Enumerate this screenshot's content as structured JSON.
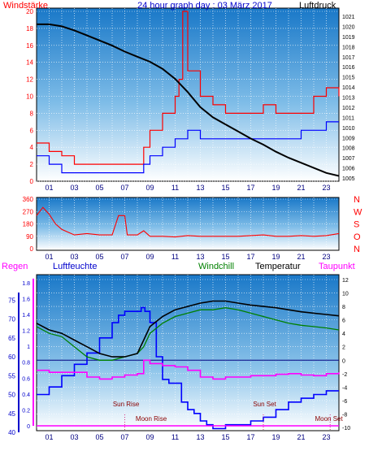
{
  "header": {
    "left": "Windstärke",
    "center": "24 hour graph day : 03 März 2017",
    "right": "Luftdruck"
  },
  "hours": [
    "01",
    "03",
    "05",
    "07",
    "09",
    "11",
    "13",
    "15",
    "17",
    "19",
    "21",
    "23"
  ],
  "panel1": {
    "left_ticks": [
      "0",
      "2",
      "4",
      "6",
      "8",
      "10",
      "12",
      "14",
      "16",
      "18",
      "20"
    ],
    "right_ticks": [
      "1005",
      "1006",
      "1007",
      "1008",
      "1009",
      "1010",
      "1011",
      "1012",
      "1013",
      "1014",
      "1015",
      "1016",
      "1017",
      "1018",
      "1019",
      "1020",
      "1021"
    ]
  },
  "panel2": {
    "left_ticks": [
      "0",
      "90",
      "180",
      "270",
      "360"
    ],
    "compass": [
      "N",
      "W",
      "S",
      "O",
      "N"
    ]
  },
  "panel3": {
    "labels": {
      "regen": "Regen",
      "luftfeuchte": "Luftfeuchte",
      "windchill": "Windchill",
      "temperatur": "Temperatur",
      "taupunkt": "Taupunkt"
    },
    "humidity_ticks": [
      "40",
      "45",
      "50",
      "55",
      "60",
      "65",
      "70",
      "75"
    ],
    "rain_ticks": [
      "0",
      "0.2",
      "0.4",
      "0.6",
      "0.8",
      "1",
      "1.2",
      "1.4",
      "1.6",
      "1.8"
    ],
    "temp_ticks": [
      "-10",
      "-8",
      "-6",
      "-4",
      "-2",
      "0",
      "2",
      "4",
      "6",
      "8",
      "10",
      "12"
    ],
    "annotations": {
      "sun_rise": "Sun Rise",
      "moon_rise": "Moon Rise",
      "sun_set": "Sun Set",
      "moon_set": "Moon Set"
    }
  },
  "colors": {
    "wind_gust": "#ff0000",
    "wind_avg": "#0000ff",
    "pressure": "#000000",
    "direction": "#ff0000",
    "humidity": "#0000ff",
    "temperature": "#000000",
    "windchill": "#008000",
    "dewpoint": "#ff00ff",
    "rain": "#ff00ff",
    "annotation": "#8b0000"
  },
  "chart_data": [
    {
      "type": "line",
      "ylim_left": [
        0,
        20
      ],
      "ylim_right": [
        1005,
        1021
      ],
      "xlim": [
        0,
        24
      ],
      "series": [
        {
          "name": "",
          "axis": "left",
          "x": [
            0,
            1,
            2,
            3,
            4,
            5,
            6,
            7,
            8,
            8.5,
            9,
            10,
            11,
            11.3,
            11.6,
            12,
            13,
            14,
            15,
            16,
            17,
            18,
            19,
            20,
            21,
            22,
            23,
            24
          ],
          "values": [
            4.5,
            3.5,
            3,
            2,
            2,
            2,
            2,
            2,
            2,
            4,
            6,
            8,
            10,
            12,
            20,
            13,
            10,
            9,
            8,
            8,
            8,
            9,
            8,
            8,
            8,
            10,
            11,
            10
          ]
        },
        {
          "name": "",
          "axis": "left",
          "x": [
            0,
            1,
            2,
            3,
            4,
            5,
            6,
            7,
            8,
            8.5,
            9,
            10,
            11,
            12,
            13,
            14,
            15,
            16,
            17,
            18,
            19,
            20,
            21,
            22,
            23,
            24
          ],
          "values": [
            3,
            2,
            1,
            1,
            1,
            1,
            1,
            1,
            1,
            2,
            3,
            4,
            5,
            6,
            5,
            5,
            5,
            5,
            5,
            5,
            5,
            5,
            6,
            6,
            7,
            7
          ]
        },
        {
          "name": "",
          "axis": "right",
          "x": [
            0,
            1,
            2,
            3,
            4,
            5,
            6,
            7,
            8,
            9,
            10,
            11,
            12,
            13,
            14,
            15,
            16,
            17,
            18,
            19,
            20,
            21,
            22,
            23,
            24
          ],
          "values": [
            1020.2,
            1020.2,
            1020.0,
            1019.6,
            1019.1,
            1018.6,
            1018.1,
            1017.5,
            1017.0,
            1016.5,
            1015.8,
            1014.8,
            1013.5,
            1012.0,
            1011.0,
            1010.3,
            1009.6,
            1008.9,
            1008.3,
            1007.6,
            1007.0,
            1006.5,
            1006.0,
            1005.5,
            1005.2
          ]
        }
      ]
    },
    {
      "type": "line",
      "ylim": [
        0,
        360
      ],
      "xlim": [
        0,
        24
      ],
      "series": [
        {
          "name": "",
          "x": [
            0,
            0.5,
            1,
            1.5,
            2,
            2.5,
            3,
            4,
            5,
            6,
            6.5,
            7,
            7.2,
            8,
            8.5,
            9,
            10,
            11,
            12,
            13,
            14,
            15,
            16,
            17,
            18,
            19,
            20,
            21,
            22,
            23,
            24
          ],
          "values": [
            240,
            300,
            250,
            180,
            140,
            120,
            100,
            110,
            100,
            100,
            240,
            240,
            100,
            100,
            130,
            90,
            90,
            85,
            95,
            90,
            90,
            90,
            90,
            95,
            100,
            90,
            90,
            95,
            90,
            95,
            110
          ]
        }
      ]
    },
    {
      "type": "line",
      "xlim": [
        0,
        24
      ],
      "ylim_humidity": [
        40,
        80
      ],
      "ylim_rain": [
        0,
        1.9
      ],
      "ylim_temp": [
        -10,
        12
      ],
      "series": [
        {
          "name": "Luftfeuchte",
          "axis": "humidity",
          "x": [
            0,
            1,
            2,
            3,
            4,
            5,
            6,
            6.5,
            7,
            7.5,
            8,
            8.3,
            8.6,
            9,
            9.5,
            10,
            10.5,
            11,
            11.5,
            12,
            12.5,
            13,
            13.5,
            14,
            14.5,
            15,
            16,
            17,
            18,
            19,
            20,
            21,
            22,
            23,
            24
          ],
          "values": [
            50,
            52,
            55,
            58,
            61,
            65,
            69,
            71,
            72,
            72,
            72,
            73,
            72,
            69,
            60,
            54,
            53,
            53,
            48,
            46,
            45,
            43,
            42,
            41,
            41,
            42,
            42,
            43,
            44,
            46,
            48,
            49,
            50,
            51,
            51
          ]
        },
        {
          "name": "Temperatur",
          "axis": "temp",
          "x": [
            0,
            1,
            2,
            3,
            4,
            5,
            6,
            7,
            8,
            8.5,
            9,
            10,
            11,
            12,
            13,
            14,
            15,
            16,
            17,
            18,
            19,
            20,
            21,
            22,
            23,
            24
          ],
          "values": [
            5.5,
            4.5,
            4,
            3,
            2,
            1,
            0.5,
            0.5,
            1,
            3,
            5,
            6.5,
            7.5,
            8,
            8.5,
            8.8,
            8.8,
            8.5,
            8.2,
            8,
            7.8,
            7.5,
            7.2,
            7,
            6.8,
            6.6
          ]
        },
        {
          "name": "Windchill",
          "axis": "temp",
          "x": [
            0,
            1,
            2,
            3,
            4,
            5,
            6,
            7,
            8,
            8.5,
            9,
            10,
            11,
            12,
            13,
            14,
            15,
            16,
            17,
            18,
            19,
            20,
            21,
            22,
            23,
            24
          ],
          "values": [
            5,
            4,
            3.5,
            2,
            0.5,
            0,
            0,
            0.5,
            1,
            2,
            4,
            5.5,
            6.5,
            7,
            7.5,
            7.5,
            7.8,
            7.5,
            7,
            6.5,
            6,
            5.5,
            5.2,
            5,
            4.8,
            4.5
          ]
        },
        {
          "name": "Taupunkt",
          "axis": "temp",
          "x": [
            0,
            1,
            2,
            3,
            4,
            5,
            6,
            7,
            8,
            8.5,
            9,
            10,
            11,
            12,
            13,
            14,
            15,
            16,
            17,
            18,
            19,
            20,
            21,
            22,
            23,
            24
          ],
          "values": [
            -1.5,
            -1.8,
            -1.8,
            -1.8,
            -2.5,
            -2.8,
            -2.5,
            -2.2,
            -2,
            0,
            -0.5,
            -0.8,
            -1,
            -1.5,
            -2.5,
            -2.8,
            -2.5,
            -2.5,
            -2.3,
            -2.3,
            -2.1,
            -2.0,
            -2.2,
            -2.3,
            -2.0,
            -1.8
          ]
        },
        {
          "name": "Regen",
          "axis": "rain",
          "x": [
            0,
            24
          ],
          "values": [
            0,
            0
          ]
        }
      ]
    }
  ]
}
